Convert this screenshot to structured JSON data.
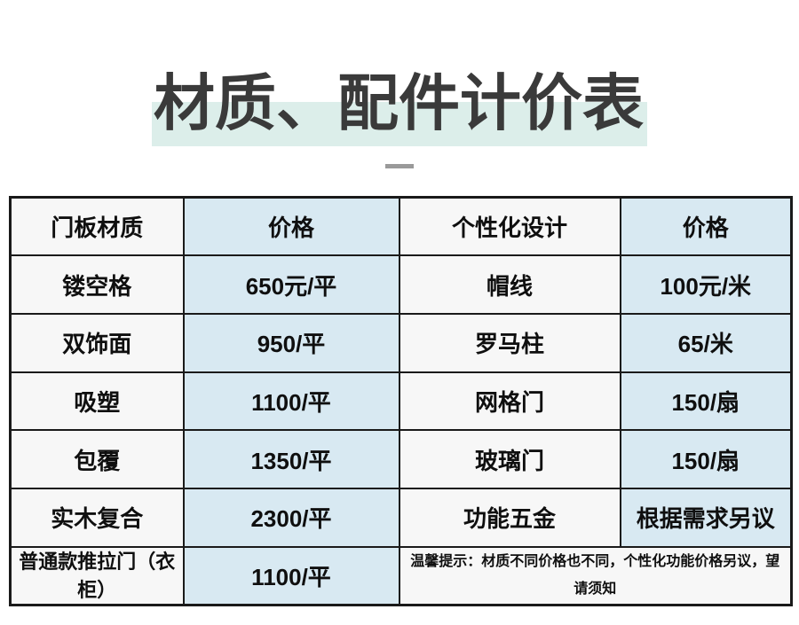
{
  "title": "材质、配件计价表",
  "table": {
    "headers": [
      "门板材质",
      "价格",
      "个性化设计",
      "价格"
    ],
    "rows": [
      [
        "镂空格",
        "650元/平",
        "帽线",
        "100元/米"
      ],
      [
        "双饰面",
        "950/平",
        "罗马柱",
        "65/米"
      ],
      [
        "吸塑",
        "1100/平",
        "网格门",
        "150/扇"
      ],
      [
        "包覆",
        "1350/平",
        "玻璃门",
        "150/扇"
      ],
      [
        "实木复合",
        "2300/平",
        "功能五金",
        "根据需求另议"
      ],
      [
        "普通款推拉门（衣柜）",
        "1100/平"
      ]
    ],
    "notice": "温馨提示：材质不同价格也不同，个性化功能价格另议，望请须知"
  },
  "colors": {
    "highlight_band": "#dceeea",
    "cell_blue": "#d8e9f2",
    "cell_white": "#f7f7f7",
    "border": "#1a1a1a",
    "title_text": "#3a3a3a",
    "dash": "#9a9a9a"
  }
}
